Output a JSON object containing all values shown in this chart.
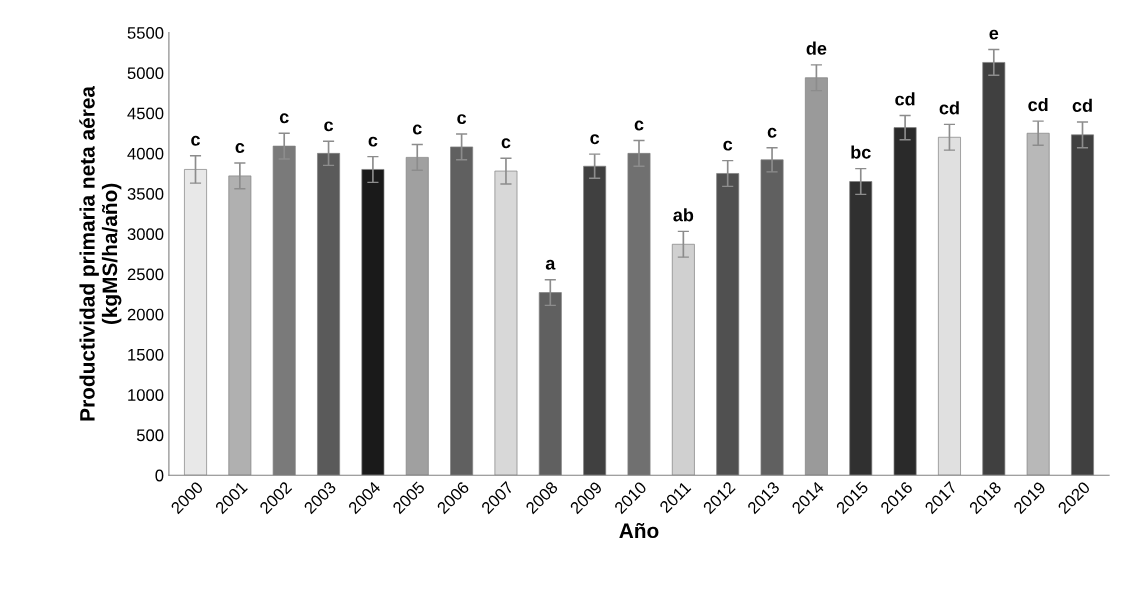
{
  "chart_data": {
    "type": "bar",
    "xlabel": "Año",
    "ylabel": "Productividad primaria neta aérea\n(kgMS/ha/año)",
    "categories": [
      "2000",
      "2001",
      "2002",
      "2003",
      "2004",
      "2005",
      "2006",
      "2007",
      "2008",
      "2009",
      "2010",
      "2011",
      "2012",
      "2013",
      "2014",
      "2015",
      "2016",
      "2017",
      "2018",
      "2019",
      "2020"
    ],
    "values": [
      3800,
      3720,
      4090,
      4000,
      3800,
      3950,
      4080,
      3780,
      2270,
      3840,
      4000,
      2870,
      3750,
      3920,
      4940,
      3650,
      4320,
      4200,
      5130,
      4250,
      4230
    ],
    "errors": [
      170,
      160,
      160,
      150,
      160,
      160,
      160,
      160,
      160,
      150,
      160,
      160,
      160,
      150,
      160,
      160,
      150,
      160,
      160,
      150,
      160
    ],
    "value_labels": [
      "c",
      "c",
      "c",
      "c",
      "c",
      "c",
      "c",
      "c",
      "a",
      "c",
      "c",
      "ab",
      "c",
      "c",
      "de",
      "bc",
      "cd",
      "cd",
      "e",
      "cd",
      "cd"
    ],
    "colors": [
      "#e8e8e8",
      "#b0b0b0",
      "#7a7a7a",
      "#5a5a5a",
      "#1a1a1a",
      "#a0a0a0",
      "#606060",
      "#d8d8d8",
      "#606060",
      "#404040",
      "#707070",
      "#d0d0d0",
      "#505050",
      "#606060",
      "#9a9a9a",
      "#303030",
      "#2a2a2a",
      "#e0e0e0",
      "#404040",
      "#b8b8b8",
      "#404040"
    ],
    "ylim": [
      0,
      5500
    ],
    "yticks": [
      0,
      500,
      1000,
      1500,
      2000,
      2500,
      3000,
      3500,
      4000,
      4500,
      5000,
      5500
    ],
    "grid": false
  }
}
